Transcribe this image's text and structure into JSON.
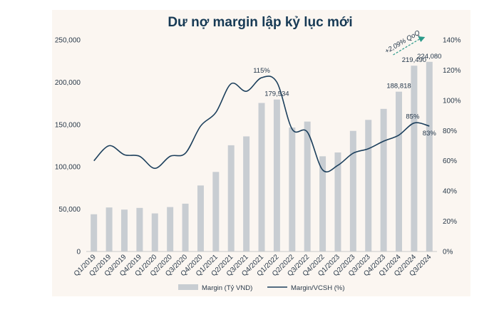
{
  "chart_data": {
    "type": "bar+line",
    "title": "Dư nợ margin lập kỷ lục mới",
    "categories": [
      "Q1/2019",
      "Q2/2019",
      "Q3/2019",
      "Q4/2019",
      "Q1/2020",
      "Q2/2020",
      "Q3/2020",
      "Q4/2020",
      "Q1/2021",
      "Q2/2021",
      "Q3/2021",
      "Q4/2021",
      "Q1/2022",
      "Q2/2022",
      "Q3/2022",
      "Q4/2022",
      "Q1/2023",
      "Q2/2023",
      "Q3/2023",
      "Q4/2023",
      "Q1/2024",
      "Q2/2024",
      "Q3/2024"
    ],
    "series": [
      {
        "name": "Margin (Tỷ VND)",
        "type": "bar",
        "axis": "left",
        "color": "#c8cdd2",
        "values": [
          44000,
          52000,
          49500,
          51500,
          45000,
          52500,
          56500,
          78000,
          94000,
          125500,
          136000,
          175500,
          179534,
          146500,
          153500,
          112500,
          117000,
          142500,
          155500,
          168500,
          188818,
          219490,
          224080
        ]
      },
      {
        "name": "Margin/VCSH (%)",
        "type": "line",
        "axis": "right",
        "color": "#1c3f5c",
        "values": [
          60,
          70,
          64,
          63,
          55,
          63,
          65,
          83,
          92,
          111,
          106,
          115,
          112,
          81,
          79,
          54,
          57,
          65,
          68,
          73,
          77,
          85,
          83
        ]
      }
    ],
    "left_axis": {
      "min": 0,
      "max": 250000,
      "step": 50000,
      "tick_labels": [
        "0",
        "50,000",
        "100,000",
        "150,000",
        "200,000",
        "250,000"
      ]
    },
    "right_axis": {
      "min": 0,
      "max": 140,
      "step": 20,
      "tick_labels": [
        "0%",
        "20%",
        "40%",
        "60%",
        "80%",
        "100%",
        "120%",
        "140%"
      ]
    },
    "bar_labels": [
      {
        "index": 12,
        "text": "179,534"
      },
      {
        "index": 20,
        "text": "188,818"
      },
      {
        "index": 21,
        "text": "219,490"
      },
      {
        "index": 22,
        "text": "224,080"
      }
    ],
    "line_labels": [
      {
        "index": 11,
        "text": "115%"
      },
      {
        "index": 21,
        "text": "85%"
      },
      {
        "index": 22,
        "text": "83%"
      }
    ],
    "annotation": {
      "text": "+2,09% QoQ",
      "from_index": 20,
      "to_index": 22,
      "color": "#2a9a8a"
    },
    "legend": {
      "placement": "bottom"
    },
    "grid": false
  }
}
